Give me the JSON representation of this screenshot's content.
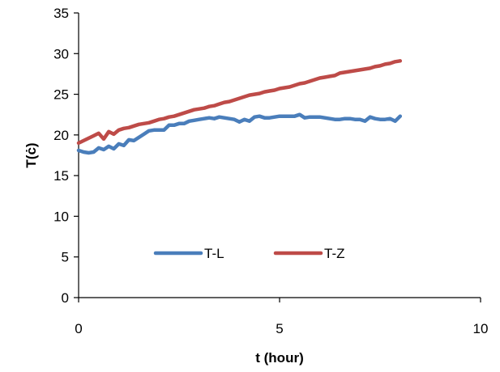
{
  "chart_data": {
    "type": "line",
    "xlabel": "t (hour)",
    "ylabel": "T(ċ)",
    "xlim": [
      0,
      10
    ],
    "ylim": [
      0,
      35
    ],
    "xticks": [
      0,
      5,
      10
    ],
    "yticks": [
      0,
      5,
      10,
      15,
      20,
      25,
      30,
      35
    ],
    "grid": false,
    "legend_position": "inside-bottom-center",
    "series": [
      {
        "name": "T-L",
        "color": "#4a7ebb",
        "x": [
          0,
          0.125,
          0.25,
          0.375,
          0.5,
          0.625,
          0.75,
          0.875,
          1,
          1.125,
          1.25,
          1.375,
          1.5,
          1.625,
          1.75,
          1.875,
          2,
          2.125,
          2.25,
          2.375,
          2.5,
          2.625,
          2.75,
          2.875,
          3,
          3.125,
          3.25,
          3.375,
          3.5,
          3.625,
          3.75,
          3.875,
          4,
          4.125,
          4.25,
          4.375,
          4.5,
          4.625,
          4.75,
          4.875,
          5,
          5.125,
          5.25,
          5.375,
          5.5,
          5.625,
          5.75,
          5.875,
          6,
          6.125,
          6.25,
          6.375,
          6.5,
          6.625,
          6.75,
          6.875,
          7,
          7.125,
          7.25,
          7.375,
          7.5,
          7.625,
          7.75,
          7.875,
          8
        ],
        "y": [
          18.1,
          17.9,
          17.8,
          17.9,
          18.4,
          18.2,
          18.6,
          18.3,
          18.9,
          18.7,
          19.4,
          19.3,
          19.7,
          20.1,
          20.5,
          20.6,
          20.6,
          20.6,
          21.2,
          21.2,
          21.4,
          21.4,
          21.7,
          21.8,
          21.9,
          22.0,
          22.1,
          22.0,
          22.2,
          22.1,
          22.0,
          21.9,
          21.6,
          21.9,
          21.7,
          22.2,
          22.3,
          22.1,
          22.1,
          22.2,
          22.3,
          22.3,
          22.3,
          22.3,
          22.5,
          22.1,
          22.2,
          22.2,
          22.2,
          22.1,
          22.0,
          21.9,
          21.9,
          22.0,
          22.0,
          21.9,
          21.9,
          21.7,
          22.2,
          22.0,
          21.9,
          21.9,
          22.0,
          21.7,
          22.3
        ]
      },
      {
        "name": "T-Z",
        "color": "#be4b48",
        "x": [
          0,
          0.125,
          0.25,
          0.375,
          0.5,
          0.625,
          0.75,
          0.875,
          1,
          1.125,
          1.25,
          1.375,
          1.5,
          1.625,
          1.75,
          1.875,
          2,
          2.125,
          2.25,
          2.375,
          2.5,
          2.625,
          2.75,
          2.875,
          3,
          3.125,
          3.25,
          3.375,
          3.5,
          3.625,
          3.75,
          3.875,
          4,
          4.125,
          4.25,
          4.375,
          4.5,
          4.625,
          4.75,
          4.875,
          5,
          5.125,
          5.25,
          5.375,
          5.5,
          5.625,
          5.75,
          5.875,
          6,
          6.125,
          6.25,
          6.375,
          6.5,
          6.625,
          6.75,
          6.875,
          7,
          7.125,
          7.25,
          7.375,
          7.5,
          7.625,
          7.75,
          7.875,
          8
        ],
        "y": [
          19.0,
          19.3,
          19.6,
          19.9,
          20.2,
          19.5,
          20.4,
          20.1,
          20.6,
          20.8,
          20.9,
          21.1,
          21.3,
          21.4,
          21.5,
          21.7,
          21.9,
          22.0,
          22.2,
          22.3,
          22.5,
          22.7,
          22.9,
          23.1,
          23.2,
          23.3,
          23.5,
          23.6,
          23.8,
          24.0,
          24.1,
          24.3,
          24.5,
          24.7,
          24.9,
          25.0,
          25.1,
          25.3,
          25.4,
          25.5,
          25.7,
          25.8,
          25.9,
          26.1,
          26.3,
          26.4,
          26.6,
          26.8,
          27.0,
          27.1,
          27.2,
          27.3,
          27.6,
          27.7,
          27.8,
          27.9,
          28.0,
          28.1,
          28.2,
          28.4,
          28.5,
          28.7,
          28.8,
          29.0,
          29.1
        ]
      }
    ]
  }
}
